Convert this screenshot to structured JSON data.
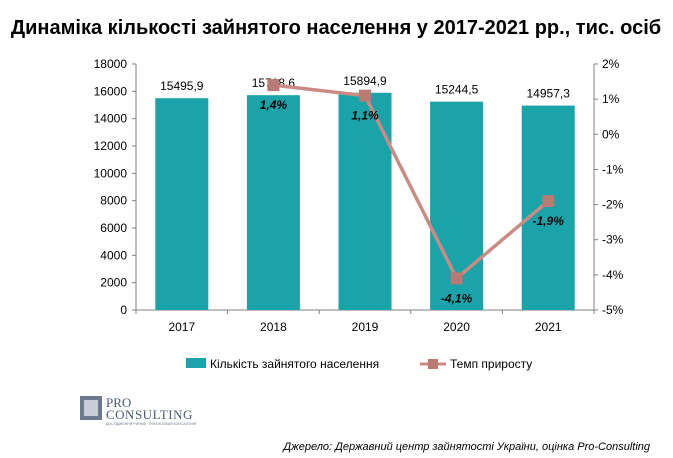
{
  "chart_data": {
    "type": "bar",
    "title": "Динаміка кількості зайнятого населення у 2017-2021 рр., тис. осіб",
    "categories": [
      "2017",
      "2018",
      "2019",
      "2020",
      "2021"
    ],
    "series": [
      {
        "name": "Кількість зайнятого населення",
        "type": "bar",
        "axis": "left",
        "values": [
          15495.9,
          15718.6,
          15894.9,
          15244.5,
          14957.3
        ],
        "labels": [
          "15495,9",
          "15718,6",
          "15894,9",
          "15244,5",
          "14957,3"
        ],
        "color": "#1aa3a8"
      },
      {
        "name": "Темп приросту",
        "type": "line",
        "axis": "right",
        "values": [
          null,
          1.4,
          1.1,
          -4.1,
          -1.9
        ],
        "labels": [
          "",
          "1,4%",
          "1,1%",
          "-4,1%",
          "-1,9%"
        ],
        "color": "#c98b84"
      }
    ],
    "y_left": {
      "min": 0,
      "max": 18000,
      "step": 2000,
      "ticks": [
        "0",
        "2000",
        "4000",
        "6000",
        "8000",
        "10000",
        "12000",
        "14000",
        "16000",
        "18000"
      ]
    },
    "y_right": {
      "min": -5,
      "max": 2,
      "step": 1,
      "ticks": [
        "-5%",
        "-4%",
        "-3%",
        "-2%",
        "-1%",
        "0%",
        "1%",
        "2%"
      ]
    },
    "grid": false,
    "legend_position": "bottom"
  },
  "source": "Джерело: Державний центр зайнятості України, оцінка Pro-Consulting",
  "logo": {
    "line1": "PRO",
    "line2": "CONSULTING",
    "tagline": "ДОСЛІДЖЕННЯ РИНКІВ · ФІНАНСОВИЙ КОНСАЛТИНГ"
  }
}
